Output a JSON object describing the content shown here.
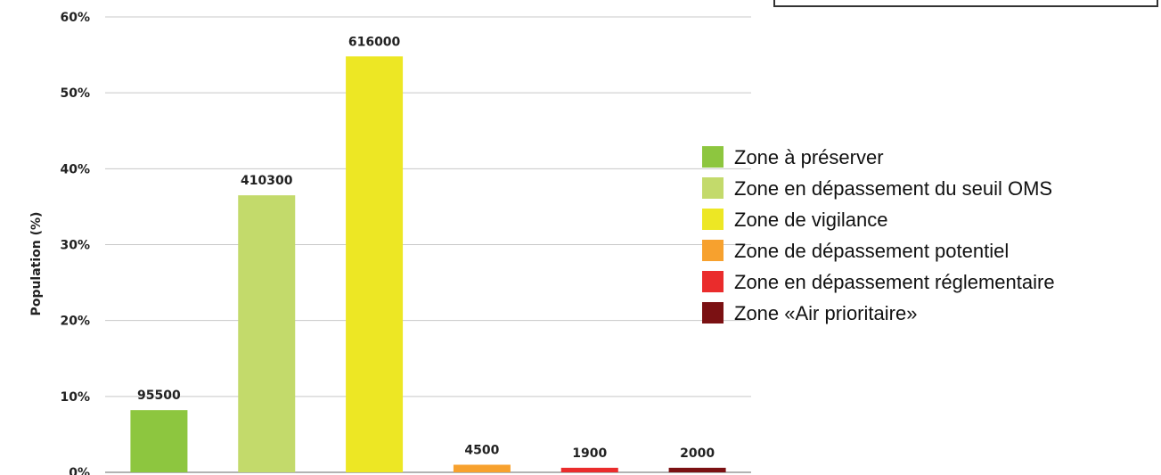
{
  "chart_data": {
    "type": "bar",
    "categories": [
      "Zone à préserver",
      "Zone en dépassement du seuil OMS",
      "Zone de vigilance",
      "Zone de dépassement potentiel",
      "Zone en dépassement réglementaire",
      "Zone «Air prioritaire»"
    ],
    "values": [
      8.2,
      36.5,
      54.8,
      1.0,
      0.6,
      0.6
    ],
    "data_labels": [
      "95500",
      "410300",
      "616000",
      "4500",
      "1900",
      "2000"
    ],
    "colors": [
      "#8dc63f",
      "#c3da6b",
      "#ede724",
      "#f7a12e",
      "#ea2c2c",
      "#7b1113"
    ],
    "ylabel": "Population (%)",
    "ylim": [
      0,
      60
    ],
    "yticks": [
      0,
      10,
      20,
      30,
      40,
      50,
      60
    ],
    "ytick_labels": [
      "0%",
      "10%",
      "20%",
      "30%",
      "40%",
      "50%",
      "60%"
    ],
    "grid": true,
    "legend_position": "right"
  }
}
